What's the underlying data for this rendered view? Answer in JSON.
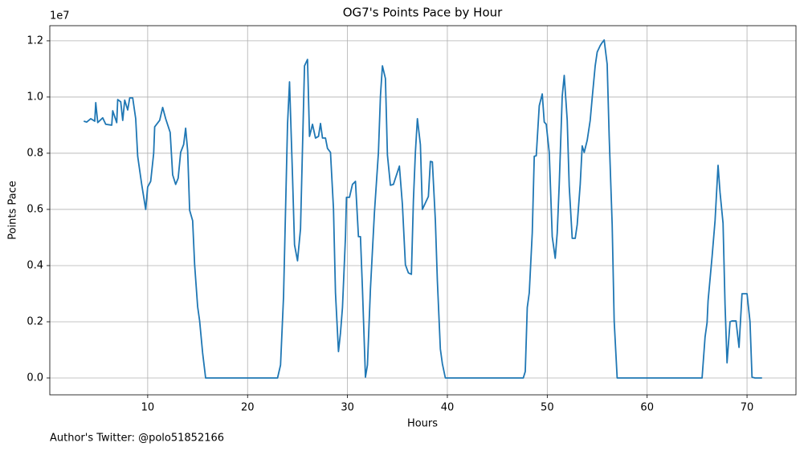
{
  "chart_data": {
    "type": "line",
    "title": "OG7's Points Pace by Hour",
    "xlabel": "Hours",
    "ylabel": "Points Pace",
    "offset_text": "1e7",
    "annotation": "Author's Twitter: @polo51852166",
    "color": "#1f77b4",
    "grid": true,
    "xlim": [
      0.2,
      74.9
    ],
    "ylim": [
      -0.06,
      1.254
    ],
    "xticks": [
      10,
      20,
      30,
      40,
      50,
      60,
      70
    ],
    "yticks": [
      {
        "value": 0,
        "label": "0.0"
      },
      0.2,
      0.4,
      0.6,
      0.8,
      {
        "value": 1,
        "label": "1.0"
      },
      1.2
    ],
    "x": [
      3.6,
      3.9,
      4.3,
      4.7,
      4.8,
      5.0,
      5.5,
      5.8,
      6.4,
      6.5,
      6.9,
      7.0,
      7.3,
      7.5,
      7.7,
      8.0,
      8.2,
      8.5,
      8.8,
      9.0,
      9.4,
      9.8,
      10.0,
      10.3,
      10.6,
      10.7,
      11.2,
      11.5,
      11.8,
      12.25,
      12.5,
      12.8,
      13.05,
      13.3,
      13.6,
      13.8,
      14.0,
      14.2,
      14.5,
      14.7,
      15.0,
      15.2,
      15.5,
      15.8,
      19.4,
      23.0,
      23.3,
      23.6,
      24.0,
      24.2,
      24.5,
      24.7,
      25.0,
      25.3,
      25.7,
      26.0,
      26.2,
      26.5,
      26.8,
      27.1,
      27.3,
      27.5,
      27.8,
      28.0,
      28.3,
      28.6,
      28.8,
      29.1,
      29.3,
      29.5,
      29.8,
      29.9,
      30.2,
      30.5,
      30.8,
      31.1,
      31.3,
      31.5,
      31.8,
      32.0,
      32.3,
      32.7,
      33.1,
      33.3,
      33.5,
      33.8,
      34.0,
      34.3,
      34.6,
      34.8,
      35.2,
      35.5,
      35.8,
      36.1,
      36.4,
      36.6,
      36.8,
      37.0,
      37.3,
      37.5,
      37.8,
      38.1,
      38.3,
      38.5,
      38.8,
      39.0,
      39.3,
      39.5,
      39.8,
      43.7,
      47.6,
      47.8,
      48.0,
      48.2,
      48.5,
      48.7,
      48.9,
      49.2,
      49.5,
      49.7,
      49.9,
      50.2,
      50.5,
      50.8,
      51.0,
      51.2,
      51.5,
      51.7,
      52.0,
      52.2,
      52.5,
      52.8,
      53.0,
      53.3,
      53.5,
      53.7,
      54.0,
      54.3,
      54.5,
      54.8,
      55.0,
      55.3,
      55.5,
      55.7,
      56.0,
      56.2,
      56.5,
      56.7,
      57.0,
      61.2,
      65.5,
      65.8,
      66.0,
      66.1,
      66.5,
      66.8,
      67.1,
      67.3,
      67.6,
      67.8,
      68.0,
      68.3,
      68.5,
      68.9,
      69.2,
      69.5,
      69.8,
      70.0,
      70.3,
      70.5,
      70.8,
      71.5
    ],
    "values": [
      0.914,
      0.911,
      0.923,
      0.914,
      0.98,
      0.909,
      0.926,
      0.903,
      0.9,
      0.951,
      0.909,
      0.991,
      0.983,
      0.917,
      0.989,
      0.954,
      0.997,
      0.997,
      0.923,
      0.789,
      0.689,
      0.6,
      0.68,
      0.7,
      0.8,
      0.894,
      0.917,
      0.963,
      0.923,
      0.874,
      0.723,
      0.689,
      0.711,
      0.803,
      0.831,
      0.889,
      0.809,
      0.597,
      0.56,
      0.403,
      0.254,
      0.203,
      0.089,
      0,
      0,
      0,
      0.046,
      0.289,
      0.903,
      1.054,
      0.717,
      0.474,
      0.417,
      0.531,
      1.111,
      1.134,
      0.86,
      0.903,
      0.854,
      0.86,
      0.906,
      0.854,
      0.854,
      0.817,
      0.803,
      0.603,
      0.303,
      0.094,
      0.16,
      0.251,
      0.503,
      0.643,
      0.643,
      0.689,
      0.7,
      0.503,
      0.503,
      0.317,
      0.003,
      0.046,
      0.317,
      0.589,
      0.803,
      1.003,
      1.111,
      1.066,
      0.794,
      0.686,
      0.689,
      0.711,
      0.754,
      0.617,
      0.403,
      0.374,
      0.369,
      0.631,
      0.803,
      0.923,
      0.831,
      0.6,
      0.623,
      0.646,
      0.771,
      0.769,
      0.56,
      0.346,
      0.103,
      0.051,
      0,
      0,
      0,
      0.023,
      0.251,
      0.303,
      0.517,
      0.789,
      0.791,
      0.969,
      1.011,
      0.911,
      0.903,
      0.803,
      0.503,
      0.426,
      0.517,
      0.689,
      1.003,
      1.077,
      0.917,
      0.683,
      0.497,
      0.497,
      0.546,
      0.689,
      0.826,
      0.803,
      0.846,
      0.917,
      0.997,
      1.111,
      1.16,
      1.183,
      1.194,
      1.203,
      1.117,
      0.86,
      0.546,
      0.203,
      0,
      0,
      0,
      0.146,
      0.197,
      0.274,
      0.431,
      0.56,
      0.757,
      0.66,
      0.551,
      0.26,
      0.054,
      0.2,
      0.203,
      0.203,
      0.109,
      0.3,
      0.3,
      0.3,
      0.2,
      0.003,
      0,
      0
    ]
  }
}
